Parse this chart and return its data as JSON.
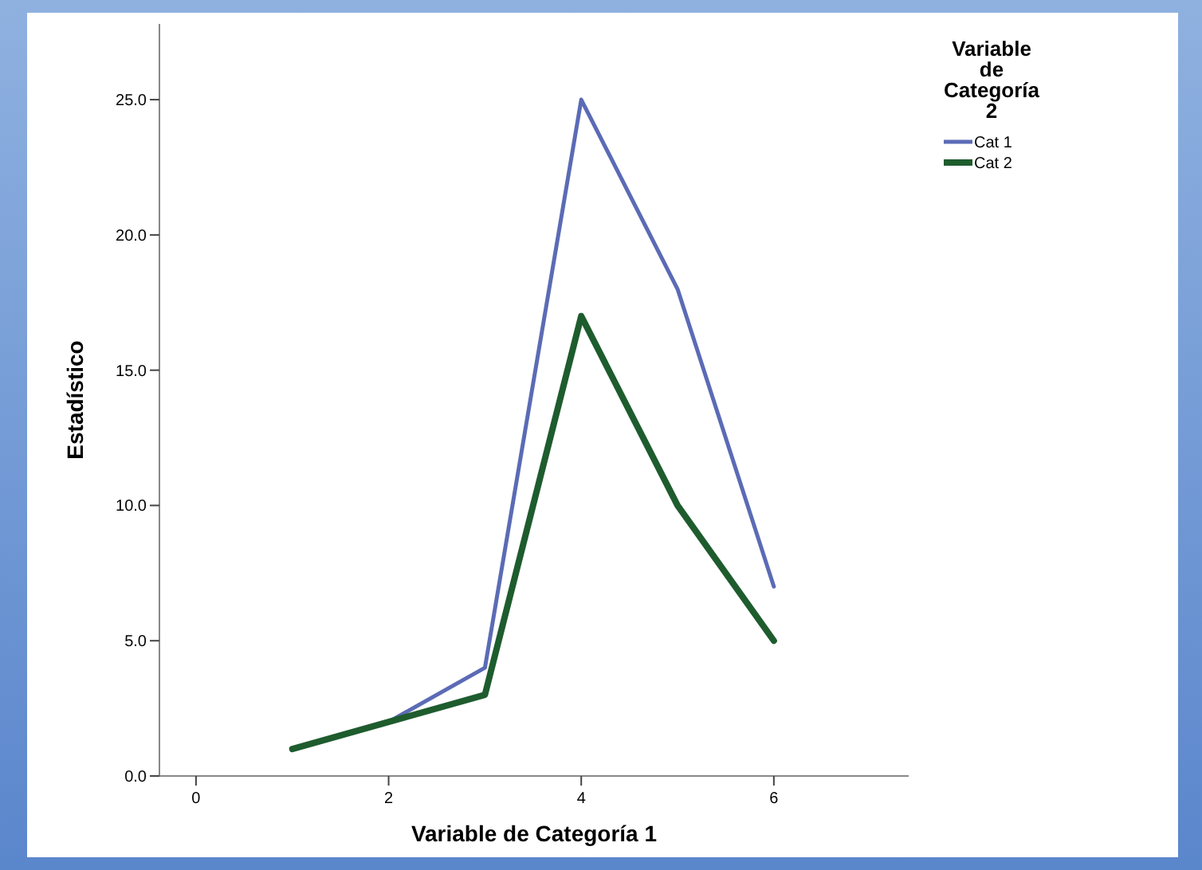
{
  "chart_data": {
    "type": "line",
    "xlabel": "Variable de Categoría 1",
    "ylabel": "Estadístico",
    "legend_title": "Variable de Categoría 2",
    "x": [
      1,
      2,
      3,
      4,
      5,
      6
    ],
    "series": [
      {
        "name": "Cat 1",
        "color": "#5b6bb5",
        "values": [
          1,
          2,
          4,
          25,
          18,
          7
        ]
      },
      {
        "name": "Cat 2",
        "color": "#1e5c2e",
        "values": [
          1,
          2,
          3,
          17,
          10,
          5
        ]
      }
    ],
    "xlim": [
      -0.38,
      7.4
    ],
    "xticks": [
      0,
      2,
      4,
      6
    ],
    "ylim": [
      0,
      27.8
    ],
    "yticks": [
      {
        "value": 0,
        "label": "0.0"
      },
      {
        "value": 5,
        "label": "5.0"
      },
      {
        "value": 10,
        "label": "10.0"
      },
      {
        "value": 15,
        "label": "15.0"
      },
      {
        "value": 20,
        "label": "20.0"
      },
      {
        "value": 25,
        "label": "25.0"
      }
    ],
    "grid": false,
    "legend": "top right",
    "marker": "none",
    "line_style": "solid"
  }
}
